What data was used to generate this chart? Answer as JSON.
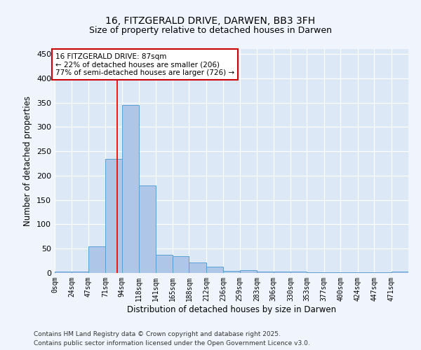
{
  "title": "16, FITZGERALD DRIVE, DARWEN, BB3 3FH",
  "subtitle": "Size of property relative to detached houses in Darwen",
  "xlabel": "Distribution of detached houses by size in Darwen",
  "ylabel": "Number of detached properties",
  "bin_labels": [
    "0sqm",
    "24sqm",
    "47sqm",
    "71sqm",
    "94sqm",
    "118sqm",
    "141sqm",
    "165sqm",
    "188sqm",
    "212sqm",
    "236sqm",
    "259sqm",
    "283sqm",
    "306sqm",
    "330sqm",
    "353sqm",
    "377sqm",
    "400sqm",
    "424sqm",
    "447sqm",
    "471sqm"
  ],
  "bar_heights": [
    3,
    3,
    55,
    235,
    345,
    180,
    37,
    35,
    22,
    13,
    5,
    6,
    3,
    3,
    3,
    2,
    1,
    1,
    1,
    1,
    3
  ],
  "bin_edges": [
    0,
    24,
    47,
    71,
    94,
    118,
    141,
    165,
    188,
    212,
    236,
    259,
    283,
    306,
    330,
    353,
    377,
    400,
    424,
    447,
    471,
    495
  ],
  "bar_color": "#aec6e8",
  "bar_edge_color": "#5a9fd4",
  "red_line_x": 87,
  "annotation_line1": "16 FITZGERALD DRIVE: 87sqm",
  "annotation_line2": "← 22% of detached houses are smaller (206)",
  "annotation_line3": "77% of semi-detached houses are larger (726) →",
  "annotation_box_color": "#ffffff",
  "annotation_box_edge": "#cc0000",
  "ylim": [
    0,
    460
  ],
  "yticks": [
    0,
    50,
    100,
    150,
    200,
    250,
    300,
    350,
    400,
    450
  ],
  "background_color": "#e8f0f8",
  "plot_bg_color": "#dce8f5",
  "grid_color": "#ffffff",
  "footer_line1": "Contains HM Land Registry data © Crown copyright and database right 2025.",
  "footer_line2": "Contains public sector information licensed under the Open Government Licence v3.0."
}
